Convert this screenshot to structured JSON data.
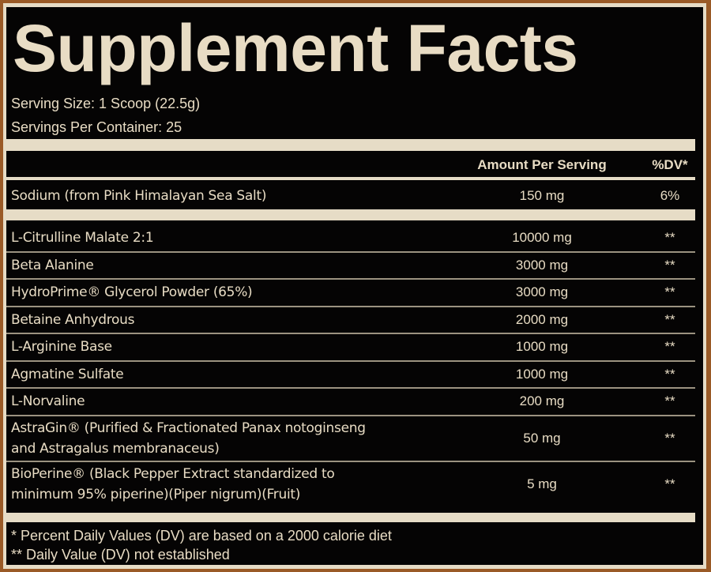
{
  "title": "Supplement Facts",
  "serving_size": "Serving Size: 1 Scoop (22.5g)",
  "servings_per_container": "Servings Per Container: 25",
  "header": {
    "amount": "Amount Per Serving",
    "dv": "%DV*"
  },
  "sodium": {
    "name": "Sodium (from Pink Himalayan Sea Salt)",
    "amount": "150 mg",
    "dv": "6%"
  },
  "ingredients": [
    {
      "name": "L-Citrulline Malate 2:1",
      "amount": "10000 mg",
      "dv": "**"
    },
    {
      "name": "Beta Alanine",
      "amount": "3000 mg",
      "dv": "**"
    },
    {
      "name": "HydroPrime® Glycerol Powder (65%)",
      "amount": "3000 mg",
      "dv": "**"
    },
    {
      "name": "Betaine Anhydrous",
      "amount": "2000 mg",
      "dv": "**"
    },
    {
      "name": "L-Arginine Base",
      "amount": "1000 mg",
      "dv": "**"
    },
    {
      "name": "Agmatine Sulfate",
      "amount": "1000 mg",
      "dv": "**"
    },
    {
      "name": "L-Norvaline",
      "amount": "200 mg",
      "dv": "**"
    },
    {
      "name": "AstraGin® (Purified & Fractionated Panax notoginseng",
      "name2": "and Astragalus membranaceus)",
      "amount": "50 mg",
      "dv": "**"
    },
    {
      "name": "BioPerine® (Black Pepper Extract standardized to",
      "name2": "minimum 95% piperine)(Piper nigrum)(Fruit)",
      "amount": "5 mg",
      "dv": "**"
    }
  ],
  "footnotes": [
    "* Percent Daily Values (DV) are based on a 2000 calorie diet",
    "** Daily Value (DV) not established"
  ]
}
